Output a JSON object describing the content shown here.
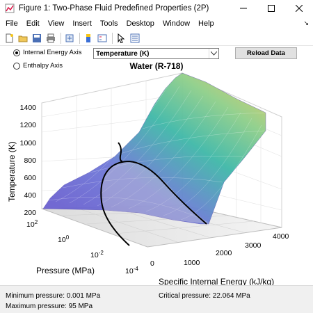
{
  "window": {
    "title": "Figure 1: Two-Phase Fluid Predefined Properties (2P)"
  },
  "menu": [
    "File",
    "Edit",
    "View",
    "Insert",
    "Tools",
    "Desktop",
    "Window",
    "Help"
  ],
  "toolbar": {
    "icons": [
      "new-figure-icon",
      "open-file-icon",
      "save-icon",
      "print-icon",
      "link-icon",
      "insert-colorbar-icon",
      "insert-legend-icon",
      "edit-plot-icon",
      "property-inspector-icon"
    ]
  },
  "controls": {
    "radio_internal_energy": "Internal Energy Axis",
    "radio_enthalpy": "Enthalpy Axis",
    "selected_axis": "Internal Energy Axis",
    "property_select": "Temperature (K)",
    "reload_label": "Reload Data"
  },
  "chart_data": {
    "type": "surface",
    "title": "Water (R-718)",
    "xlabel": "Specific Internal Energy (kJ/kg)",
    "ylabel": "Pressure (MPa)",
    "zlabel": "Temperature (K)",
    "x_ticks": [
      "0",
      "1000",
      "2000",
      "3000",
      "4000"
    ],
    "y_ticks": [
      "10^2",
      "10^0",
      "10^-2",
      "10^-4"
    ],
    "y_scale": "log",
    "z_ticks": [
      "200",
      "400",
      "600",
      "800",
      "1000",
      "1200",
      "1400"
    ],
    "z_range": [
      200,
      1500
    ],
    "grid": true,
    "colormap": "parula",
    "saturation_dome": true
  },
  "status": {
    "min_pressure": "Minimum pressure: 0.001 MPa",
    "max_pressure": "Maximum pressure: 95 MPa",
    "critical_pressure": "Critical pressure: 22.064 MPa"
  },
  "colors": {
    "surface_low": "#6a5acd",
    "surface_mid": "#3fb8a8",
    "surface_high": "#e8c95c"
  }
}
